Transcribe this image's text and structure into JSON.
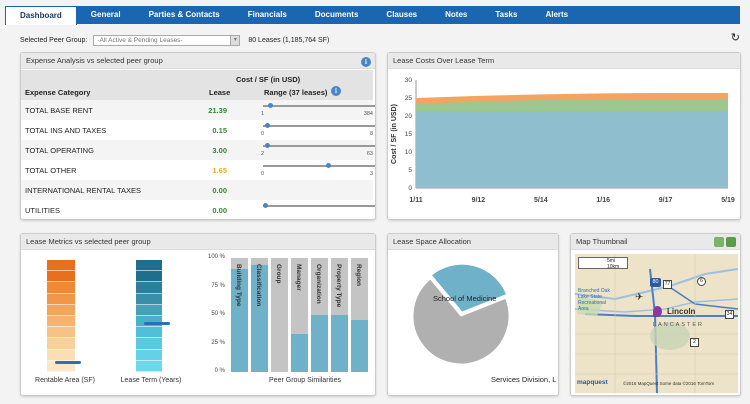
{
  "tabs": [
    {
      "label": "Dashboard",
      "active": true
    },
    {
      "label": "General"
    },
    {
      "label": "Parties & Contacts"
    },
    {
      "label": "Financials"
    },
    {
      "label": "Documents"
    },
    {
      "label": "Clauses"
    },
    {
      "label": "Notes"
    },
    {
      "label": "Tasks"
    },
    {
      "label": "Alerts"
    }
  ],
  "filter": {
    "label": "Selected Peer Group:",
    "value": "-All Active & Pending Leases-",
    "count": "80 Leases (1,185,764 SF)"
  },
  "expense": {
    "title": "Expense Analysis vs selected peer group",
    "cost_header": "Cost / SF (in USD)",
    "col_category": "Expense Category",
    "col_lease": "Lease",
    "col_range": "Range (37 leases)",
    "rows": [
      {
        "category": "Total Base Rent",
        "value": "21.39",
        "color": "#2e8b2e",
        "lo": "1",
        "hi": "384",
        "pos": 0.04
      },
      {
        "category": "Total Ins and Taxes",
        "value": "0.15",
        "color": "#2e8b2e",
        "lo": "0",
        "hi": "8",
        "pos": 0.02
      },
      {
        "category": "Total Operating",
        "value": "3.00",
        "color": "#2e8b2e",
        "lo": "2",
        "hi": "63",
        "pos": 0.02
      },
      {
        "category": "Total Other",
        "value": "1.65",
        "color": "#f0a830",
        "lo": "0",
        "hi": "3",
        "pos": 0.55
      },
      {
        "category": "International Rental Taxes",
        "value": "0.00",
        "color": "#2e8b2e",
        "lo": "",
        "hi": "",
        "pos": null
      },
      {
        "category": "Utilities",
        "value": "0.00",
        "color": "#2e8b2e",
        "lo": "",
        "hi": "",
        "pos": 0.0
      }
    ]
  },
  "costs": {
    "title": "Lease Costs Over Lease Term",
    "chart_data": {
      "type": "area",
      "ylabel": "Cost / SF (in USD)",
      "ylim": [
        0,
        30
      ],
      "yticks": [
        "30",
        "25",
        "20",
        "15",
        "10",
        "5",
        "0"
      ],
      "xticks": [
        "1/11",
        "9/12",
        "5/14",
        "1/16",
        "9/17",
        "5/19"
      ],
      "series": [
        {
          "color": "#8fbfcf",
          "values": [
            21.4,
            21.4,
            21.4,
            21.4,
            21.4,
            21.4
          ]
        },
        {
          "color": "#9dc78f",
          "values": [
            2.0,
            2.6,
            3.0,
            3.2,
            3.3,
            3.3
          ]
        },
        {
          "color": "#f4a460",
          "values": [
            1.6,
            1.6,
            1.6,
            1.7,
            1.7,
            1.7
          ]
        }
      ]
    }
  },
  "metrics": {
    "title": "Lease Metrics vs selected peer group",
    "area_label": "Rentable Area (SF)",
    "term_label": "Lease Term (Years)",
    "sim_label": "Peer Group Similarities",
    "sim_yticks": [
      "100 %",
      "75 %",
      "50 %",
      "25 %",
      "0 %"
    ],
    "similarities": [
      {
        "label": "Building Type",
        "pct": 90
      },
      {
        "label": "Classification",
        "pct": 94
      },
      {
        "label": "Group",
        "pct": 0
      },
      {
        "label": "Manager",
        "pct": 33
      },
      {
        "label": "Organization",
        "pct": 50
      },
      {
        "label": "Property Type",
        "pct": 50
      },
      {
        "label": "Region",
        "pct": 46
      }
    ],
    "area_marker": 0.1,
    "term_marker": 0.45
  },
  "space": {
    "title": "Lease Space Allocation",
    "chart_data": {
      "type": "pie",
      "slices": [
        {
          "label": "School of Medicine",
          "value": 70,
          "color": "#b0b0b0"
        },
        {
          "label": "Services Division, L",
          "value": 30,
          "color": "#6fb1c9"
        }
      ]
    }
  },
  "map": {
    "title": "Map Thumbnail",
    "scale_mi": "5mi",
    "scale_km": "10km",
    "city": "Lincoln",
    "county": "LANCASTER",
    "lake": "Branched Oak Lake State Recreational Area",
    "routes": [
      "80",
      "77",
      "6",
      "34",
      "2"
    ],
    "brand": "mapquest",
    "attribution": "©2016 MapQuest Some data ©2016 TomTom"
  }
}
